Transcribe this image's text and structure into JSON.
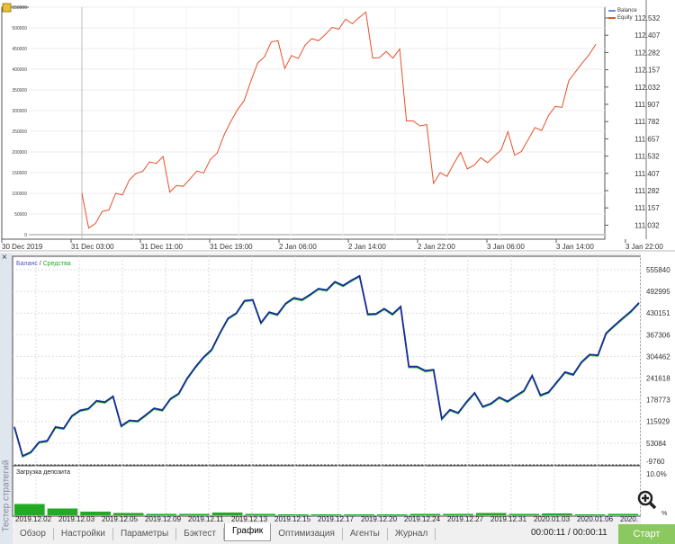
{
  "top_chart": {
    "legend": [
      "Balance",
      "Equity"
    ],
    "left_ticks": [
      "550000",
      "500000",
      "450000",
      "400000",
      "350000",
      "300000",
      "250000",
      "200000",
      "150000",
      "100000",
      "50000",
      "0"
    ],
    "right_ticks": [
      "112.532",
      "112.407",
      "112.282",
      "112.157",
      "112.032",
      "111.907",
      "111.782",
      "111.657",
      "111.532",
      "111.407",
      "111.282",
      "111.157",
      "111.032"
    ],
    "x_ticks": [
      "30 Dec 2019",
      "31 Dec 03:00",
      "31 Dec 11:00",
      "31 Dec 19:00",
      "2 Jan 06:00",
      "2 Jan 14:00",
      "2 Jan 22:00",
      "3 Jan 06:00",
      "3 Jan 14:00",
      "3 Jan 22:00"
    ],
    "colors": {
      "balance": "#6a8fd8",
      "equity": "#e8502a"
    }
  },
  "bottom_chart": {
    "legend_balance": "Баланс",
    "legend_sep": " / ",
    "legend_equity": "Средства",
    "y_ticks": [
      "555840",
      "492995",
      "430151",
      "367306",
      "304462",
      "241618",
      "178773",
      "115929",
      "53084",
      "-9760"
    ],
    "x_ticks": [
      "2019.12.02",
      "2019.12.03",
      "2019.12.05",
      "2019.12.09",
      "2019.12.11",
      "2019.12.13",
      "2019.12.15",
      "2019.12.17",
      "2019.12.20",
      "2019.12.24",
      "2019.12.27",
      "2019.12.31",
      "2020.01.03",
      "2020.01.06",
      "2020."
    ],
    "deposit_label": "Загрузка депозита",
    "deposit_max": "10.0%",
    "deposit_min": "%",
    "colors": {
      "balance": "#1a2a9a",
      "equity": "#2ecc2e",
      "load": "#22aa22"
    }
  },
  "chart_data": {
    "type": "line",
    "series": [
      {
        "name": "Equity",
        "values": [
          100000,
          16000,
          27000,
          56000,
          60000,
          100000,
          96000,
          132000,
          148000,
          153000,
          176000,
          172000,
          189000,
          103000,
          119000,
          117000,
          135000,
          154000,
          149000,
          182000,
          197000,
          240000,
          273000,
          302000,
          324000,
          372000,
          415000,
          430000,
          466000,
          469000,
          402000,
          433000,
          426000,
          458000,
          474000,
          469000,
          484000,
          501000,
          497000,
          521000,
          510000,
          525000,
          538000,
          427000,
          428000,
          443000,
          427000,
          449000,
          275000,
          275000,
          263000,
          266000,
          124000,
          150000,
          141000,
          172000,
          199000,
          159000,
          168000,
          186000,
          174000,
          190000,
          205000,
          249000,
          192000,
          201000,
          230000,
          259000,
          252000,
          288000,
          310000,
          308000,
          372000,
          394000,
          415000,
          435000,
          460000
        ]
      }
    ],
    "deposit_load_percent": [
      2.5,
      1.5,
      0.8,
      0.5,
      0.3,
      0.3,
      0.6,
      0.3,
      0.2,
      0.2,
      0.2,
      0.2,
      0.3,
      0.3,
      0.5,
      0.3,
      0.4,
      0.2,
      0.3
    ],
    "ylim_top": [
      0,
      550000
    ],
    "ylim_bottom": [
      -9760,
      555840
    ]
  },
  "sidebar": {
    "close": "×",
    "title": "Тестер стратегий"
  },
  "tabs": [
    "Обзор",
    "Настройки",
    "Параметры",
    "Бэктест",
    "График",
    "Оптимизация",
    "Агенты",
    "Журнал"
  ],
  "active_tab": "График",
  "timer": "00:00:11 / 00:00:11",
  "start_label": "Старт"
}
